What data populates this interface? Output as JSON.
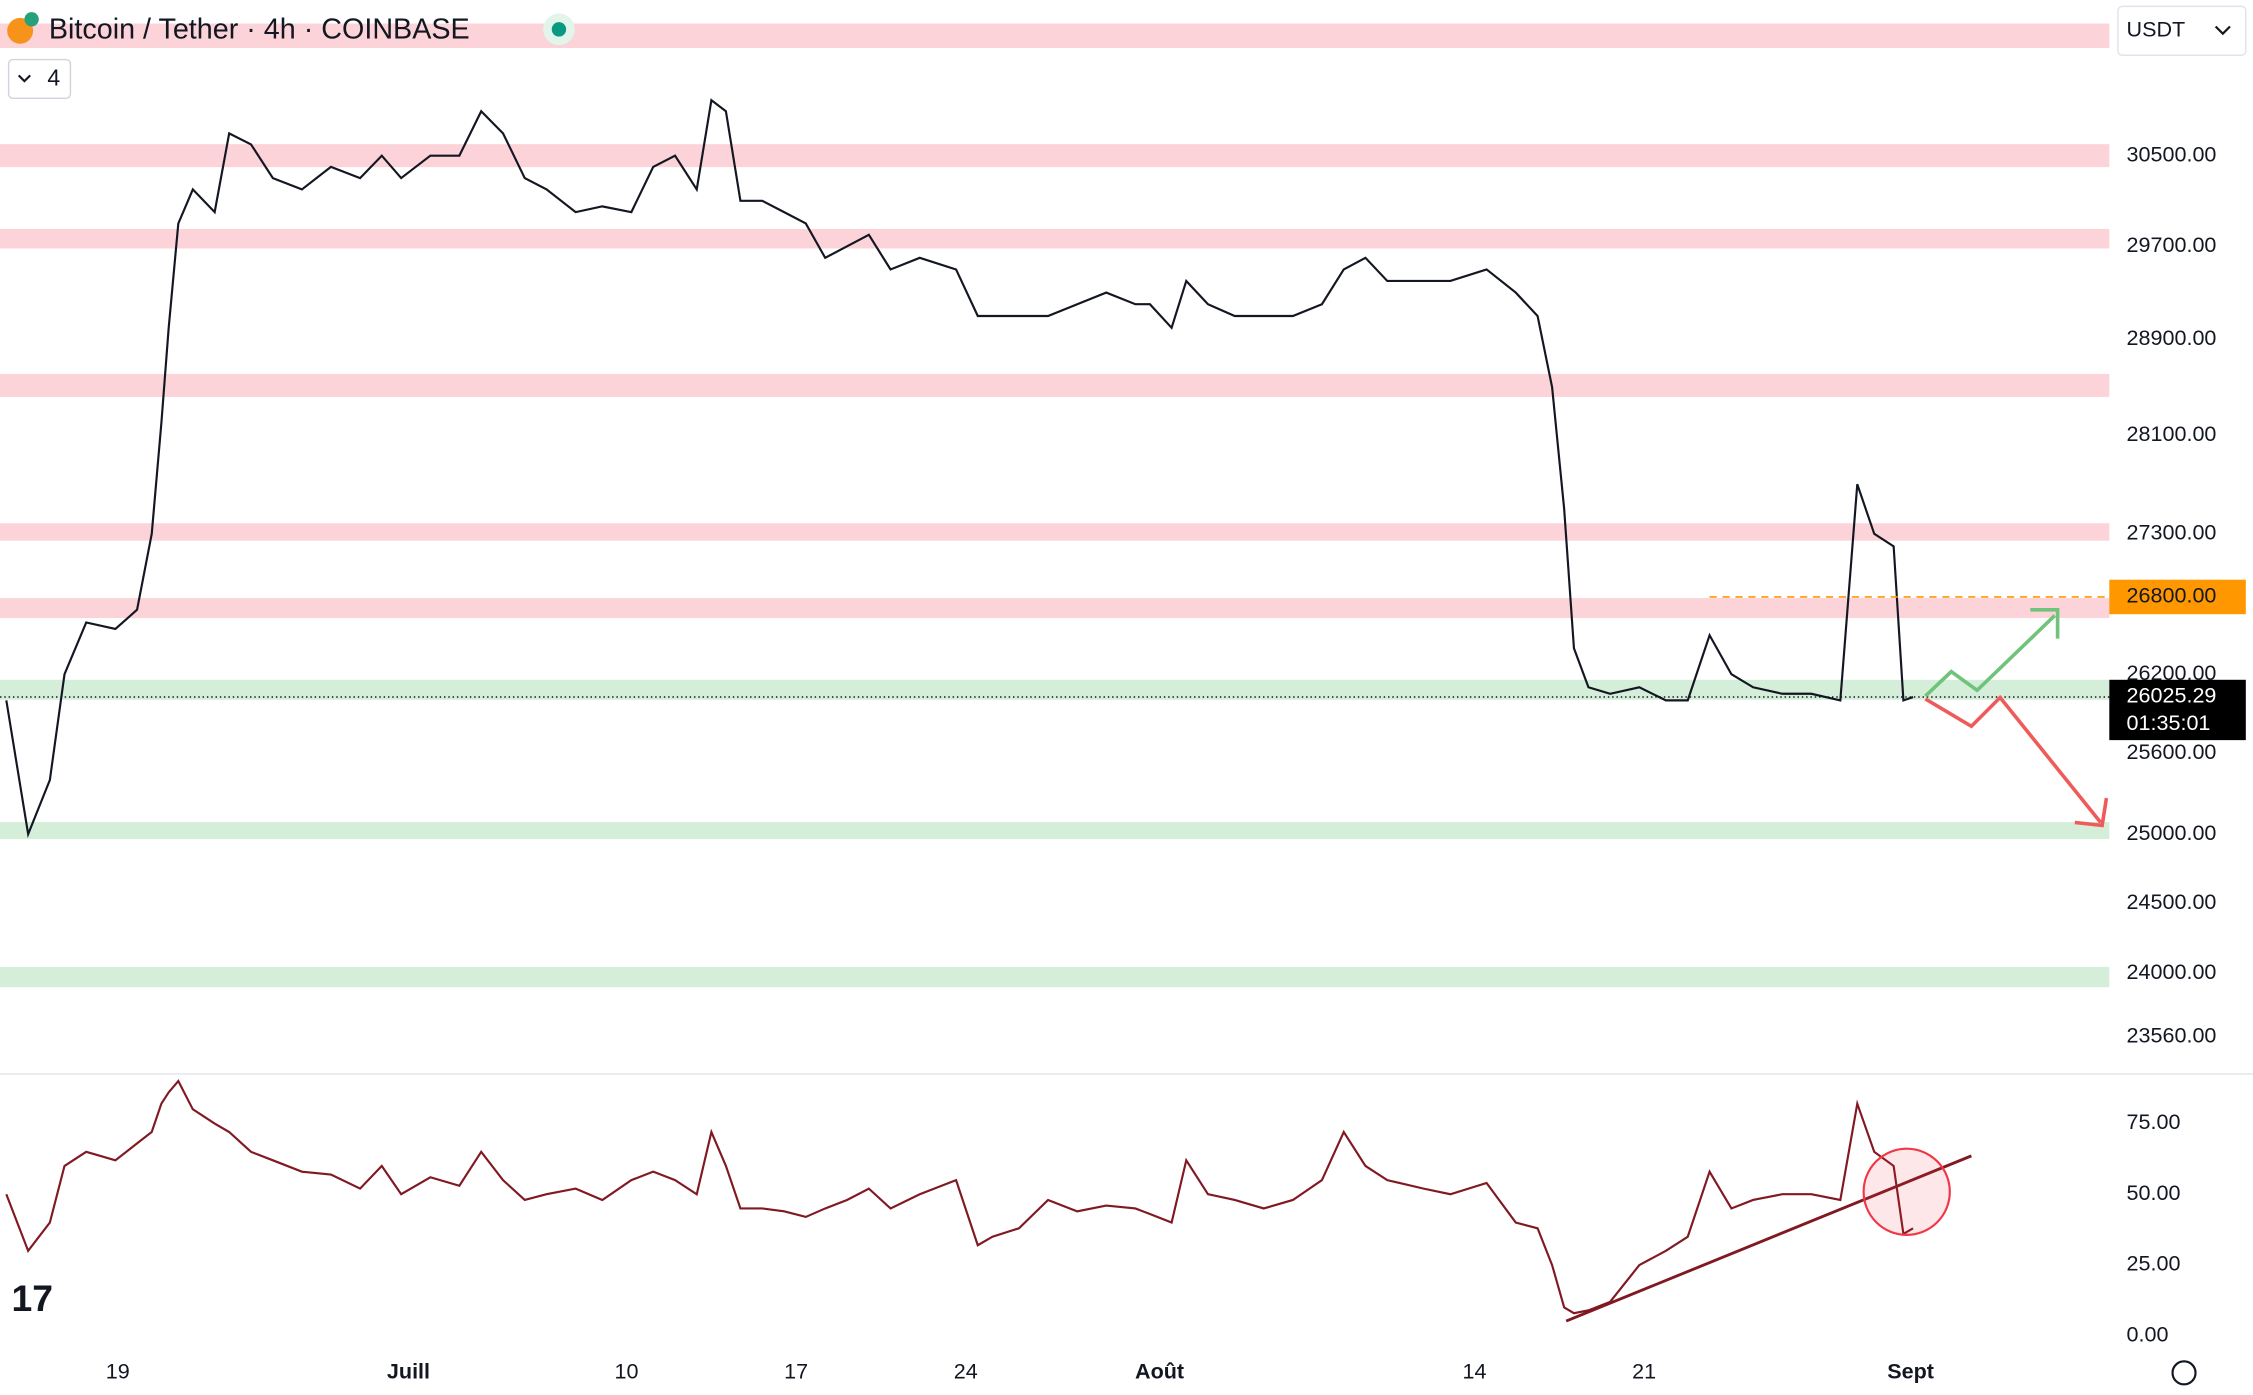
{
  "header": {
    "title": "Bitcoin / Tether · 4h · COINBASE",
    "indicators": "4",
    "currency": "USDT"
  },
  "chart_data": [
    {
      "type": "line",
      "color": "#131722",
      "log_scale": true,
      "x": [
        -4.6,
        -3.7,
        -2.8,
        -2.2,
        -1.3,
        -0.1,
        0.8,
        1.4,
        1.8,
        2.1,
        2.5,
        3.1,
        4.0,
        4.6,
        5.5,
        6.4,
        7.6,
        8.8,
        10.0,
        10.9,
        11.7,
        12.9,
        14.1,
        15.0,
        15.9,
        16.8,
        17.7,
        18.9,
        20.0,
        21.2,
        22.1,
        23.0,
        23.9,
        24.5,
        25.1,
        25.7,
        26.6,
        27.5,
        28.4,
        29.2,
        30.1,
        31.0,
        31.9,
        33.1,
        34.6,
        35.5,
        36.1,
        37.2,
        38.4,
        39.6,
        40.8,
        42.0,
        42.6,
        43.5,
        44.1,
        45.0,
        46.1,
        47.3,
        48.5,
        49.7,
        50.6,
        51.5,
        52.4,
        53.9,
        55.0,
        56.5,
        57.7,
        58.6,
        59.2,
        59.7,
        60.1,
        60.7,
        61.6,
        62.8,
        63.9,
        64.8,
        65.7,
        66.6,
        67.5,
        68.7,
        69.9,
        71.1,
        71.8,
        72.5,
        73.3,
        73.7,
        74.1
      ],
      "values": [
        26000,
        25000,
        25400,
        26200,
        26600,
        26550,
        26700,
        27300,
        28200,
        29000,
        29900,
        30200,
        30000,
        30700,
        30600,
        30300,
        30200,
        30400,
        30300,
        30500,
        30300,
        30500,
        30500,
        30900,
        30700,
        30300,
        30200,
        30000,
        30050,
        30000,
        30400,
        30500,
        30200,
        31000,
        30900,
        30100,
        30100,
        30000,
        29900,
        29600,
        29700,
        29800,
        29500,
        29600,
        29500,
        29100,
        29100,
        29100,
        29100,
        29200,
        29300,
        29200,
        29200,
        29000,
        29400,
        29200,
        29100,
        29100,
        29100,
        29200,
        29500,
        29600,
        29400,
        29400,
        29400,
        29500,
        29300,
        29100,
        28500,
        27500,
        26400,
        26100,
        26050,
        26100,
        26000,
        26000,
        26500,
        26200,
        26100,
        26050,
        26050,
        26000,
        27700,
        27300,
        27200,
        26000,
        26025
      ],
      "xlim": [
        -4.86,
        82.2
      ],
      "xticks": [
        {
          "value": 0,
          "label": "19"
        },
        {
          "value": 12,
          "label": "Juill"
        },
        {
          "value": 21,
          "label": "10"
        },
        {
          "value": 28,
          "label": "17"
        },
        {
          "value": 35,
          "label": "24"
        },
        {
          "value": 43,
          "label": "Août"
        },
        {
          "value": 56,
          "label": "14"
        },
        {
          "value": 63,
          "label": "21"
        },
        {
          "value": 74,
          "label": "Sept"
        }
      ],
      "ylim": [
        23323,
        31918
      ],
      "yticks": [
        {
          "value": 30500,
          "label": "30500.00"
        },
        {
          "value": 29700,
          "label": "29700.00"
        },
        {
          "value": 28900,
          "label": "28900.00"
        },
        {
          "value": 28100,
          "label": "28100.00"
        },
        {
          "value": 27300,
          "label": "27300.00"
        },
        {
          "value": 26200,
          "label": "26200.00"
        },
        {
          "value": 25600,
          "label": "25600.00"
        },
        {
          "value": 25000,
          "label": "25000.00"
        },
        {
          "value": 24500,
          "label": "24500.00"
        },
        {
          "value": 24000,
          "label": "24000.00"
        },
        {
          "value": 23560,
          "label": "23560.00"
        }
      ],
      "zones": [
        {
          "range": [
            31478,
            31704
          ],
          "color": "#fbd3d8"
        },
        {
          "range": [
            30398,
            30603
          ],
          "color": "#fbd3d8"
        },
        {
          "range": [
            29682,
            29852
          ],
          "color": "#fbd3d8"
        },
        {
          "range": [
            28418,
            28610
          ],
          "color": "#fbd3d8"
        },
        {
          "range": [
            27246,
            27385
          ],
          "color": "#fbd3d8"
        },
        {
          "range": [
            26635,
            26791
          ],
          "color": "#fbd3d8"
        },
        {
          "range": [
            26004,
            26157
          ],
          "color": "#d5eed9"
        },
        {
          "range": [
            24964,
            25089
          ],
          "color": "#d5eed9"
        },
        {
          "range": [
            23903,
            24046
          ],
          "color": "#d5eed9"
        }
      ],
      "level_marker": {
        "value": 26800,
        "label": "26800.00",
        "color": "#ff9800"
      },
      "last_price": {
        "value": 26025.29,
        "label": "26025.29",
        "countdown": "01:35:01"
      }
    },
    {
      "type": "line",
      "color": "#801922",
      "values": [
        50,
        30,
        40,
        60,
        65,
        62,
        68,
        72,
        82,
        86,
        90,
        80,
        75,
        72,
        65,
        62,
        58,
        57,
        52,
        60,
        50,
        56,
        53,
        65,
        55,
        48,
        50,
        52,
        48,
        55,
        58,
        55,
        50,
        72,
        60,
        45,
        45,
        44,
        42,
        45,
        48,
        52,
        45,
        50,
        55,
        32,
        35,
        38,
        48,
        44,
        46,
        45,
        43,
        40,
        62,
        50,
        48,
        45,
        48,
        55,
        72,
        60,
        55,
        52,
        50,
        54,
        40,
        38,
        25,
        10,
        8,
        9,
        12,
        25,
        30,
        35,
        58,
        45,
        48,
        50,
        50,
        48,
        82,
        65,
        60,
        36,
        38
      ],
      "ylim": [
        -8,
        92
      ],
      "yticks": [
        {
          "value": 75,
          "label": "75.00"
        },
        {
          "value": 50,
          "label": "50.00"
        },
        {
          "value": 25,
          "label": "25.00"
        },
        {
          "value": 0,
          "label": "0.00"
        }
      ]
    }
  ]
}
